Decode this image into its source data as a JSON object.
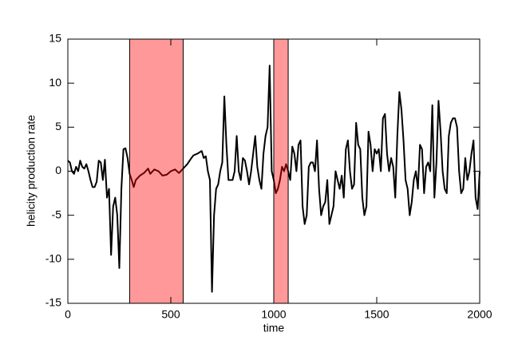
{
  "chart_data": {
    "type": "line",
    "x_label": "time",
    "y_label": "helicity production rate",
    "xlim": [
      0,
      2000
    ],
    "xticks": [
      0,
      500,
      1000,
      1500,
      2000
    ],
    "ylim": [
      -15,
      15
    ],
    "yticks": [
      -15,
      -10,
      -5,
      0,
      5,
      10,
      15
    ],
    "shaded_regions": [
      [
        300,
        560
      ],
      [
        1000,
        1070
      ]
    ],
    "shade_color": "#ff0000",
    "series": [
      {
        "color": "#000000",
        "x": [
          0,
          10,
          20,
          30,
          40,
          50,
          60,
          70,
          80,
          90,
          100,
          110,
          120,
          130,
          140,
          150,
          160,
          170,
          180,
          190,
          200,
          210,
          220,
          230,
          240,
          250,
          260,
          270,
          280,
          290,
          300,
          310,
          320,
          330,
          350,
          370,
          390,
          400,
          420,
          440,
          460,
          480,
          500,
          520,
          540,
          560,
          580,
          600,
          610,
          630,
          650,
          660,
          670,
          680,
          690,
          700,
          710,
          720,
          730,
          740,
          750,
          760,
          770,
          780,
          790,
          800,
          810,
          820,
          830,
          840,
          850,
          860,
          870,
          880,
          890,
          900,
          910,
          920,
          930,
          940,
          950,
          960,
          970,
          980,
          990,
          1000,
          1010,
          1020,
          1030,
          1040,
          1050,
          1060,
          1070,
          1080,
          1090,
          1100,
          1110,
          1120,
          1130,
          1140,
          1150,
          1160,
          1170,
          1180,
          1190,
          1200,
          1210,
          1220,
          1230,
          1240,
          1250,
          1260,
          1270,
          1280,
          1290,
          1300,
          1310,
          1320,
          1330,
          1340,
          1350,
          1360,
          1370,
          1380,
          1390,
          1400,
          1410,
          1420,
          1430,
          1440,
          1450,
          1460,
          1470,
          1480,
          1490,
          1500,
          1510,
          1520,
          1530,
          1540,
          1550,
          1560,
          1570,
          1580,
          1590,
          1600,
          1610,
          1620,
          1630,
          1640,
          1650,
          1660,
          1670,
          1680,
          1690,
          1700,
          1710,
          1720,
          1730,
          1740,
          1750,
          1760,
          1770,
          1780,
          1790,
          1800,
          1810,
          1820,
          1830,
          1840,
          1850,
          1860,
          1870,
          1880,
          1890,
          1900,
          1910,
          1920,
          1930,
          1940,
          1950,
          1960,
          1970,
          1980,
          1990,
          2000
        ],
        "values": [
          1.2,
          1.0,
          0,
          -0.3,
          0.5,
          0,
          1.2,
          0.5,
          0.3,
          0.8,
          0,
          -1,
          -1.8,
          -1.8,
          -1.2,
          1.2,
          1.0,
          -1,
          1.3,
          -3,
          -2,
          -9.5,
          -4,
          -3,
          -5,
          -11,
          -2,
          2.5,
          2.6,
          1.5,
          -0.3,
          -1,
          -1.8,
          -1,
          -0.5,
          -0.2,
          0.3,
          -0.3,
          0.2,
          0,
          -0.5,
          -0.4,
          0,
          0.2,
          -0.2,
          0.3,
          0.8,
          1.5,
          1.8,
          2.0,
          2.3,
          1.5,
          1.7,
          0,
          -1,
          -13.7,
          -5,
          -2,
          -1.5,
          0,
          1,
          8.5,
          3,
          -1,
          -1,
          -1,
          0,
          4,
          0,
          -1,
          1.5,
          1.2,
          0,
          -1.5,
          0,
          2,
          4,
          0.5,
          -1,
          -2,
          2,
          4,
          5,
          12,
          0,
          -1,
          -2.5,
          -2,
          -1,
          0.5,
          0,
          0.8,
          0,
          -1,
          2.8,
          2,
          0,
          3,
          3.5,
          -4,
          -6,
          -5,
          0.5,
          1,
          1,
          0,
          3.5,
          -2,
          -5,
          -4,
          -3.5,
          -1,
          -6,
          -5,
          -4,
          0,
          -1,
          -2,
          -0.5,
          -3,
          2.5,
          3.5,
          0,
          -2,
          -1.5,
          5.5,
          3,
          2.5,
          -3,
          -5,
          -4,
          4.5,
          3,
          0,
          2.5,
          2,
          2.5,
          0,
          6,
          6.5,
          2,
          0,
          1.5,
          0.5,
          -3,
          4,
          9,
          7,
          3.5,
          -1,
          -2,
          -5,
          -3.5,
          -1,
          0,
          -2,
          3,
          2.5,
          -2.5,
          0.5,
          1,
          0,
          7.5,
          -3,
          1,
          8,
          4.5,
          0,
          -2,
          -2.5,
          4,
          5.5,
          6,
          6,
          5,
          0,
          -2.5,
          -2,
          1.5,
          -1,
          0,
          2,
          3.5,
          -3,
          -4.3,
          0
        ]
      }
    ]
  }
}
